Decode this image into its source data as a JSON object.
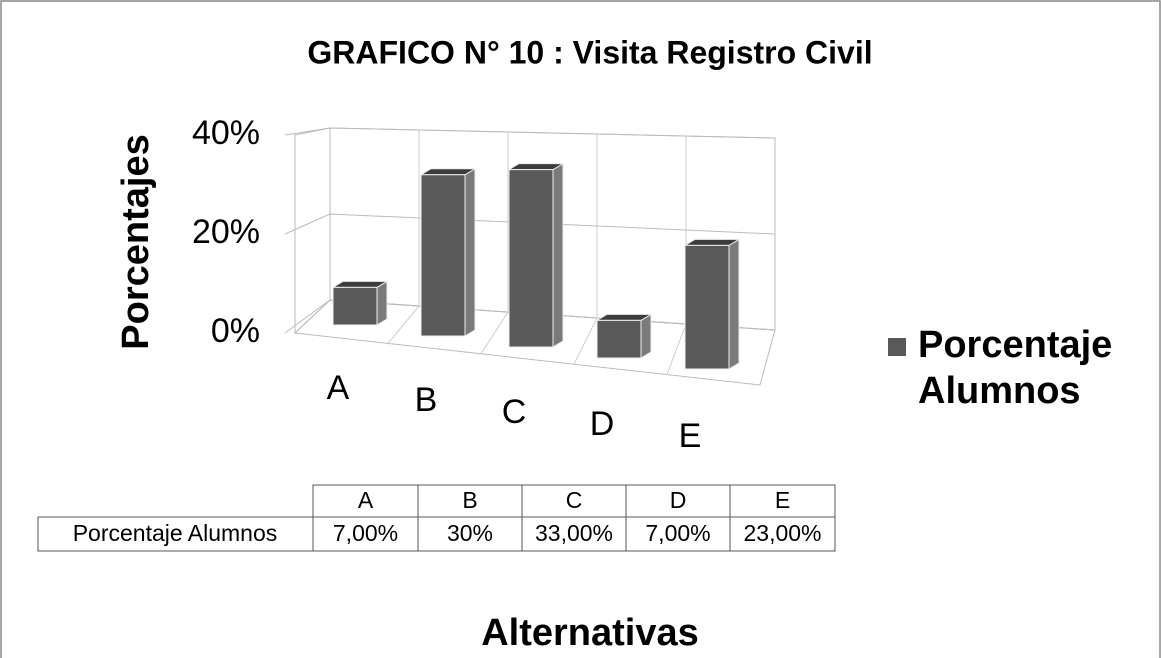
{
  "chart_data": {
    "type": "bar",
    "title": "GRAFICO N° 10 : Visita Registro Civil",
    "categories": [
      "A",
      "B",
      "C",
      "D",
      "E"
    ],
    "series": [
      {
        "name": "Porcentaje Alumnos",
        "color": "#595959",
        "values": [
          7,
          30,
          33,
          7,
          23
        ],
        "value_labels": [
          "7,00%",
          "30%",
          "33,00%",
          "7,00%",
          "23,00%"
        ]
      }
    ],
    "ylim": [
      0,
      40
    ],
    "yticks": [
      {
        "value": 0,
        "label": "0%"
      },
      {
        "value": 20,
        "label": "20%"
      },
      {
        "value": 40,
        "label": "40%"
      }
    ],
    "y_label": "Porcentajes",
    "x_label": "Alternativas",
    "grid": true,
    "legend": "right",
    "data_table": true
  }
}
